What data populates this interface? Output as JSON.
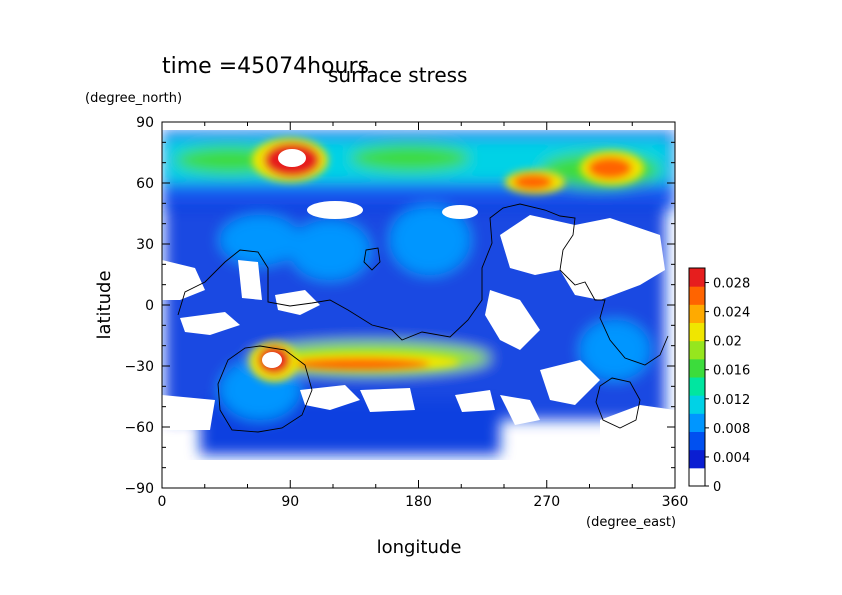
{
  "header": {
    "time_label": "time =45074hours",
    "title": "surface stress"
  },
  "chart_data": {
    "type": "heatmap",
    "title": "surface stress",
    "xlabel": "longitude",
    "ylabel": "latitude",
    "xunits": "(degree_east)",
    "yunits": "(degree_north)",
    "xlim": [
      0,
      360
    ],
    "ylim": [
      -90,
      90
    ],
    "xticks": [
      0,
      90,
      180,
      270,
      360
    ],
    "xtick_labels": [
      "0",
      "90",
      "180",
      "270",
      "360"
    ],
    "yticks": [
      90,
      60,
      30,
      0,
      -30,
      -60,
      -90
    ],
    "ytick_labels": [
      "90",
      "60",
      "30",
      "0",
      "−30",
      "−60",
      "−90"
    ],
    "colorbar": {
      "min": 0,
      "max": 0.03,
      "ticks": [
        0,
        0.004,
        0.008,
        0.012,
        0.016,
        0.02,
        0.024,
        0.028
      ],
      "tick_labels": [
        "0",
        "0.004",
        "0.008",
        "0.012",
        "0.016",
        "0.02",
        "0.024",
        "0.028"
      ],
      "colors": [
        "#ffffff",
        "#0a1ed2",
        "#0050f0",
        "#0096ff",
        "#00d2e6",
        "#00e6a0",
        "#3cdc3c",
        "#96e61e",
        "#f0e600",
        "#ffaa00",
        "#ff6400",
        "#e61e1e"
      ]
    },
    "features": [
      {
        "name": "north-polar-band",
        "lon": 180,
        "lat": 70,
        "dlon": 180,
        "dlat": 12,
        "value": 0.008
      },
      {
        "name": "north-max-90E",
        "lon": 95,
        "lat": 68,
        "dlon": 22,
        "dlat": 9,
        "value": 0.028
      },
      {
        "name": "north-max-265E",
        "lon": 262,
        "lat": 62,
        "dlon": 20,
        "dlat": 6,
        "value": 0.022
      },
      {
        "name": "north-max-315E",
        "lon": 315,
        "lat": 66,
        "dlon": 25,
        "dlat": 8,
        "value": 0.022
      },
      {
        "name": "southern-jet",
        "lon": 150,
        "lat": -28,
        "dlon": 90,
        "dlat": 8,
        "value": 0.022
      },
      {
        "name": "south-max-70E",
        "lon": 72,
        "lat": -28,
        "dlon": 15,
        "dlat": 10,
        "value": 0.028
      },
      {
        "name": "tropics",
        "lon": 180,
        "lat": 5,
        "dlon": 180,
        "dlat": 35,
        "value": 0.006
      }
    ]
  }
}
